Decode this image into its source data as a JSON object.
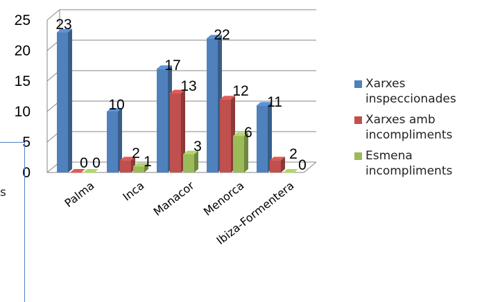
{
  "chart_data": {
    "type": "bar",
    "three_d": true,
    "categories": [
      "Palma",
      "Inca",
      "Manacor",
      "Menorca",
      "Ibiza-Formentera"
    ],
    "series": [
      {
        "name": "Xarxes inspeccionades",
        "values": [
          23,
          10,
          17,
          22,
          11
        ],
        "color": "#4f81bd"
      },
      {
        "name": "Xarxes amb incompliments",
        "values": [
          0,
          2,
          13,
          12,
          2
        ],
        "color": "#c0504d"
      },
      {
        "name": "Esmena incompliments",
        "values": [
          0,
          1,
          3,
          6,
          0
        ],
        "color": "#9bbb59"
      }
    ],
    "yticks": [
      "0",
      "5",
      "10",
      "15",
      "20",
      "25"
    ],
    "ylim": [
      0,
      25
    ],
    "grid": true,
    "legend_position": "right"
  },
  "legend": [
    {
      "label": "Xarxes inspeccionades",
      "color": "#4f81bd"
    },
    {
      "label": "Xarxes amb incompliments",
      "color": "#c0504d"
    },
    {
      "label": "Esmena incompliments",
      "color": "#9bbb59"
    }
  ],
  "side_text": "s"
}
